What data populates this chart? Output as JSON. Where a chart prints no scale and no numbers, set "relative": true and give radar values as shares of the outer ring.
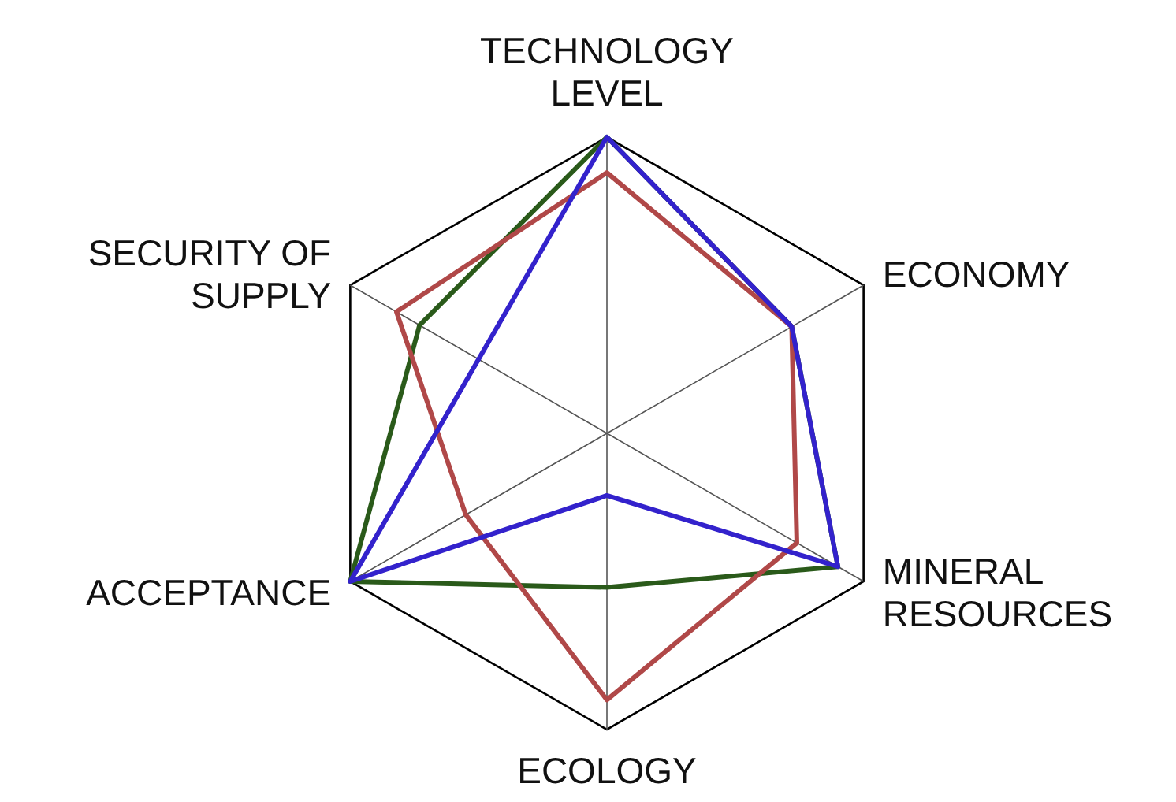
{
  "chart_data": {
    "type": "radar",
    "relative": true,
    "grid": true,
    "categories": [
      "TECHNOLOGY\nLEVEL",
      "ECONOMY",
      "MINERAL\nRESOURCES",
      "ECOLOGY",
      "ACCEPTANCE",
      "SECURITY OF\nSUPPLY"
    ],
    "series": [
      {
        "color": "#2a5a1a",
        "values": [
          1.0,
          0.72,
          0.9,
          0.52,
          1.0,
          0.73
        ]
      },
      {
        "color": "#b04848",
        "values": [
          0.88,
          0.72,
          0.74,
          0.9,
          0.55,
          0.82
        ]
      },
      {
        "color": "#3322cc",
        "values": [
          1.0,
          0.72,
          0.9,
          0.21,
          1.0,
          0.5
        ]
      }
    ]
  }
}
